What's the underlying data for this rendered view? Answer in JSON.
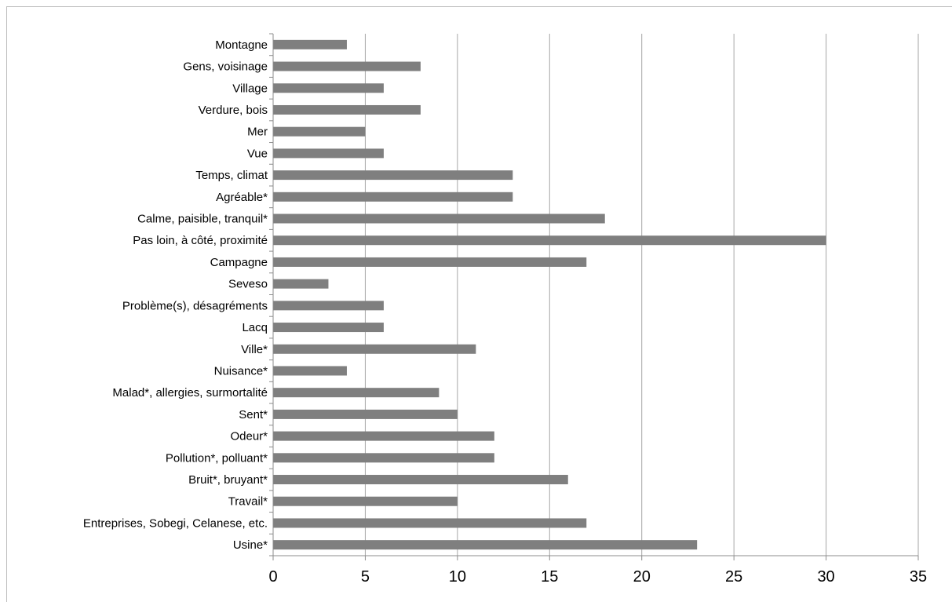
{
  "chart_data": {
    "type": "bar",
    "orientation": "horizontal",
    "categories": [
      "Montagne",
      "Gens, voisinage",
      "Village",
      "Verdure, bois",
      "Mer",
      "Vue",
      "Temps, climat",
      "Agréable*",
      "Calme, paisible, tranquil*",
      "Pas loin, à côté, proximité",
      "Campagne",
      "Seveso",
      "Problème(s), désagréments",
      "Lacq",
      "Ville*",
      "Nuisance*",
      "Malad*, allergies, surmortalité",
      "Sent*",
      "Odeur*",
      "Pollution*, polluant*",
      "Bruit*, bruyant*",
      "Travail*",
      "Entreprises,  Sobegi, Celanese, etc.",
      "Usine*"
    ],
    "values": [
      4,
      8,
      6,
      8,
      5,
      6,
      13,
      13,
      18,
      30,
      17,
      3,
      6,
      6,
      11,
      4,
      9,
      10,
      12,
      12,
      16,
      10,
      17,
      23
    ],
    "xlim": [
      0,
      35
    ],
    "xticks": [
      "0",
      "5",
      "10",
      "15",
      "20",
      "25",
      "30",
      "35"
    ],
    "grid": "vertical",
    "legend": "none",
    "title": "",
    "xlabel": "",
    "ylabel": "",
    "bar_color": "#7f7f7f",
    "grid_color": "#a6a6a6"
  }
}
